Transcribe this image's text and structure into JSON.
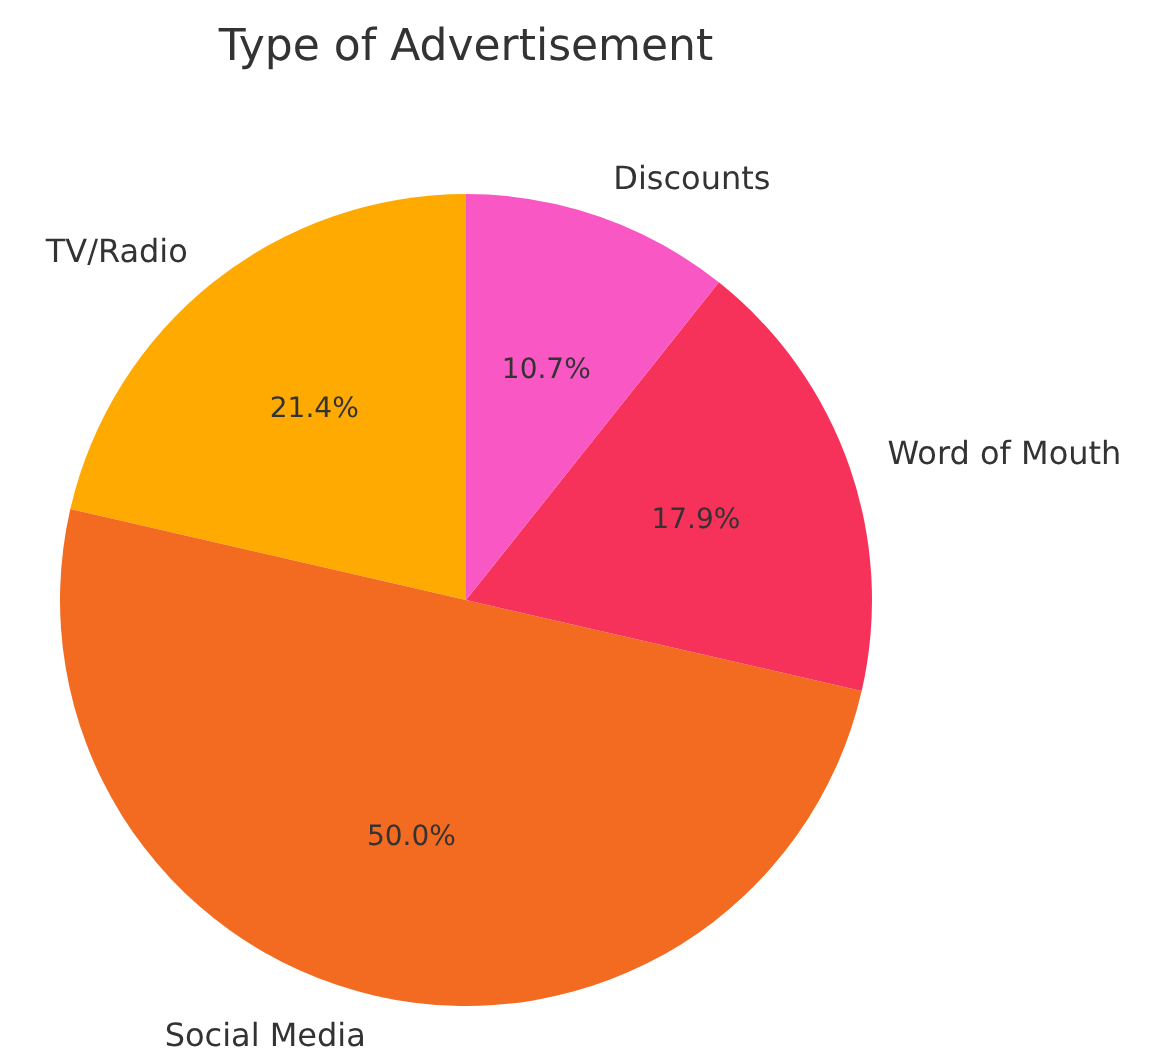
{
  "chart_data": {
    "type": "pie",
    "title": "Type of Advertisement",
    "categories": [
      "TV/Radio",
      "Social Media",
      "Word of Mouth",
      "Discounts"
    ],
    "values": [
      21.4,
      50.0,
      17.9,
      10.7
    ],
    "colors": [
      "#ffaa00",
      "#f26b21",
      "#f7325a",
      "#f857c4"
    ],
    "value_labels": [
      "21.4%",
      "50.0%",
      "17.9%",
      "10.7%"
    ]
  }
}
